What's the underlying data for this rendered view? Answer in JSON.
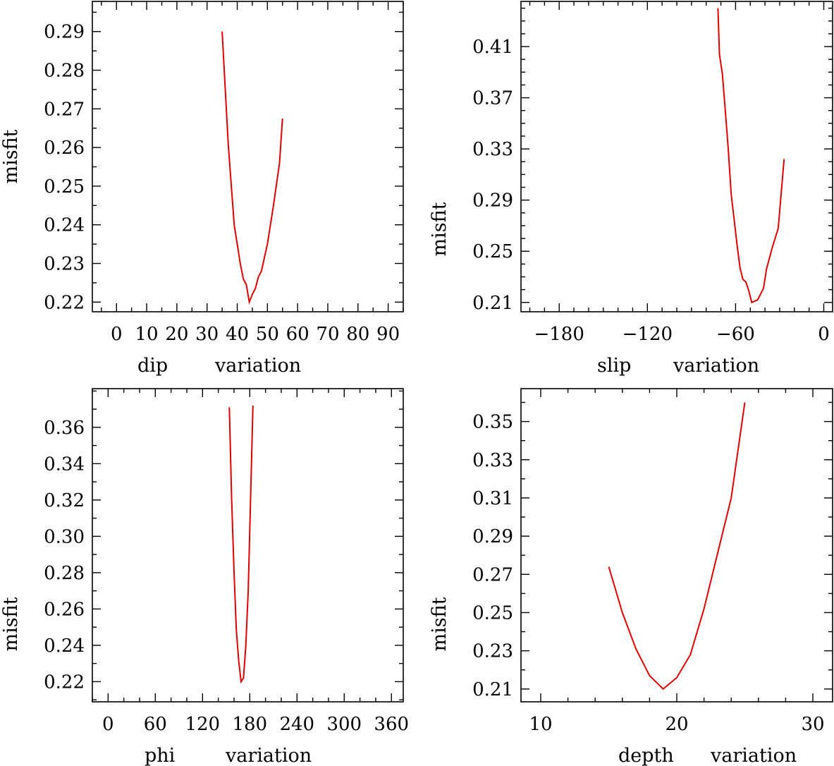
{
  "chart_data": [
    {
      "id": "dip",
      "type": "line",
      "xlabel_left": "dip",
      "xlabel_right": "variation",
      "ylabel": "misfit",
      "xlim": [
        -8,
        95
      ],
      "ylim": [
        0.2175,
        0.2978
      ],
      "xticks": [
        0,
        10,
        20,
        30,
        40,
        50,
        60,
        70,
        80,
        90
      ],
      "xtick_labels": [
        "0",
        "10",
        "20",
        "30",
        "40",
        "50",
        "60",
        "70",
        "80",
        "90"
      ],
      "xminor": 5,
      "yticks": [
        0.22,
        0.23,
        0.24,
        0.25,
        0.26,
        0.27,
        0.28,
        0.29
      ],
      "ytick_labels": [
        "0.22",
        "0.23",
        "0.24",
        "0.25",
        "0.26",
        "0.27",
        "0.28",
        "0.29"
      ],
      "yminor": 0.005,
      "series": [
        {
          "name": "misfit",
          "color": "#e00000",
          "x": [
            35,
            37,
            39,
            41,
            42,
            43,
            44,
            45,
            46,
            47,
            48,
            50,
            52,
            54,
            55
          ],
          "y": [
            0.29,
            0.261,
            0.24,
            0.23,
            0.226,
            0.2245,
            0.22,
            0.222,
            0.2235,
            0.2265,
            0.228,
            0.235,
            0.245,
            0.256,
            0.2675
          ]
        }
      ]
    },
    {
      "id": "slip",
      "type": "line",
      "xlabel_left": "slip",
      "xlabel_right": "variation",
      "ylabel": "misfit",
      "xlim": [
        -206,
        6
      ],
      "ylim": [
        0.2027,
        0.4453
      ],
      "xticks": [
        -180,
        -120,
        -60,
        0
      ],
      "xtick_labels": [
        "−180",
        "−120",
        "−60",
        "0"
      ],
      "xminor": 10,
      "yticks": [
        0.21,
        0.25,
        0.29,
        0.33,
        0.37,
        0.41
      ],
      "ytick_labels": [
        "0.21",
        "0.25",
        "0.29",
        "0.33",
        "0.37",
        "0.41"
      ],
      "yminor": 0.01,
      "series": [
        {
          "name": "misfit",
          "color": "#e00000",
          "x": [
            -72,
            -71,
            -69,
            -67,
            -65,
            -63,
            -61,
            -59,
            -57,
            -55,
            -53,
            -51,
            -49,
            -45,
            -41,
            -39,
            -35,
            -31,
            -27
          ],
          "y": [
            0.44,
            0.404,
            0.389,
            0.36,
            0.33,
            0.295,
            0.275,
            0.255,
            0.237,
            0.228,
            0.226,
            0.219,
            0.21,
            0.212,
            0.221,
            0.236,
            0.253,
            0.268,
            0.322
          ]
        }
      ]
    },
    {
      "id": "phi",
      "type": "line",
      "xlabel_left": "phi",
      "xlabel_right": "variation",
      "ylabel": "misfit",
      "xlim": [
        -20,
        375
      ],
      "ylim": [
        0.2089,
        0.3813
      ],
      "xticks": [
        0,
        60,
        120,
        180,
        240,
        300,
        360
      ],
      "xtick_labels": [
        "0",
        "60",
        "120",
        "180",
        "240",
        "300",
        "360"
      ],
      "xminor": 20,
      "yticks": [
        0.22,
        0.24,
        0.26,
        0.28,
        0.3,
        0.32,
        0.34,
        0.36
      ],
      "ytick_labels": [
        "0.22",
        "0.24",
        "0.26",
        "0.28",
        "0.30",
        "0.32",
        "0.34",
        "0.36"
      ],
      "yminor": 0.01,
      "series": [
        {
          "name": "misfit",
          "color": "#e00000",
          "x": [
            154,
            157,
            160,
            163,
            166,
            169,
            172,
            175,
            178,
            181,
            184
          ],
          "y": [
            0.371,
            0.32,
            0.28,
            0.248,
            0.231,
            0.22,
            0.222,
            0.24,
            0.27,
            0.32,
            0.372
          ]
        }
      ]
    },
    {
      "id": "depth",
      "type": "line",
      "xlabel_left": "depth",
      "xlabel_right": "variation",
      "ylabel": "misfit",
      "xlim": [
        8.55,
        31.45
      ],
      "ylim": [
        0.2033,
        0.3672
      ],
      "xticks": [
        10,
        20,
        30
      ],
      "xtick_labels": [
        "10",
        "20",
        "30"
      ],
      "xminor": 2,
      "yticks": [
        0.21,
        0.23,
        0.25,
        0.27,
        0.29,
        0.31,
        0.33,
        0.35
      ],
      "ytick_labels": [
        "0.21",
        "0.23",
        "0.25",
        "0.27",
        "0.29",
        "0.31",
        "0.33",
        "0.35"
      ],
      "yminor": 0.01,
      "series": [
        {
          "name": "misfit",
          "color": "#e00000",
          "x": [
            15,
            16,
            17,
            18,
            19,
            20,
            21,
            22,
            23,
            24,
            25
          ],
          "y": [
            0.274,
            0.25,
            0.231,
            0.217,
            0.21,
            0.216,
            0.228,
            0.252,
            0.281,
            0.31,
            0.36
          ]
        }
      ]
    }
  ]
}
